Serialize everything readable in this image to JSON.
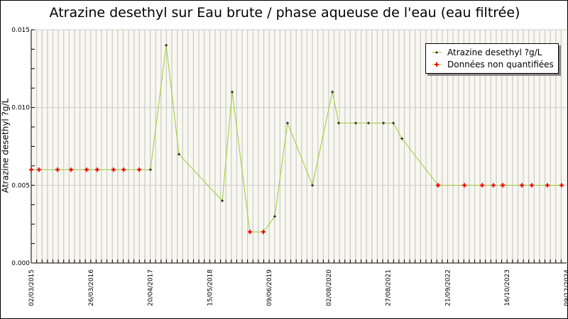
{
  "chart_data": {
    "type": "line",
    "title": "Atrazine desethyl sur Eau brute / phase aqueuse de l'eau (eau filtrée)",
    "xlabel": "",
    "ylabel": "Atrazine desethyl ?g/L",
    "xlim": [
      "2015-03-02",
      "2024-12-09"
    ],
    "ylim": [
      0,
      0.015
    ],
    "x_tick_labels": [
      "02/03/2015",
      "26/03/2016",
      "20/04/2017",
      "15/05/2018",
      "09/06/2019",
      "02/08/2020",
      "27/08/2021",
      "21/09/2022",
      "16/10/2023",
      "09/12/2024"
    ],
    "y_tick_labels": [
      "0.000",
      "0.005",
      "0.010",
      "0.015"
    ],
    "grid": true,
    "legend_position": "top-right",
    "colors": {
      "line": "#9acd32",
      "quantified": "#000000",
      "non_quantified": "#ff0000",
      "plot_bg": "#f8f8f0",
      "grid": "#cccccc"
    },
    "series": [
      {
        "name": "Atrazine desethyl ?g/L",
        "points": [
          [
            "2015-03-02",
            0.006,
            "nq"
          ],
          [
            "2015-04-23",
            0.006,
            "nq"
          ],
          [
            "2015-08-24",
            0.006,
            "nq"
          ],
          [
            "2015-11-22",
            0.006,
            "nq"
          ],
          [
            "2016-03-05",
            0.006,
            "nq"
          ],
          [
            "2016-05-15",
            0.006,
            "nq"
          ],
          [
            "2016-09-01",
            0.006,
            "nq"
          ],
          [
            "2016-11-07",
            0.006,
            "nq"
          ],
          [
            "2017-02-19",
            0.006,
            "nq"
          ],
          [
            "2017-05-05",
            0.006,
            "q"
          ],
          [
            "2017-08-18",
            0.014,
            "q"
          ],
          [
            "2017-11-11",
            0.007,
            "q"
          ],
          [
            "2018-08-27",
            0.004,
            "q"
          ],
          [
            "2018-11-01",
            0.011,
            "q"
          ],
          [
            "2019-02-27",
            0.002,
            "nq"
          ],
          [
            "2019-05-28",
            0.002,
            "nq"
          ],
          [
            "2019-08-12",
            0.003,
            "q"
          ],
          [
            "2019-11-05",
            0.009,
            "q"
          ],
          [
            "2020-04-19",
            0.005,
            "q"
          ],
          [
            "2020-08-30",
            0.011,
            "q"
          ],
          [
            "2020-10-11",
            0.009,
            "q"
          ],
          [
            "2021-02-02",
            0.009,
            "q"
          ],
          [
            "2021-04-28",
            0.009,
            "q"
          ],
          [
            "2021-08-06",
            0.009,
            "q"
          ],
          [
            "2021-10-11",
            0.009,
            "q"
          ],
          [
            "2021-12-07",
            0.008,
            "q"
          ],
          [
            "2022-08-05",
            0.005,
            "nq"
          ],
          [
            "2023-01-27",
            0.005,
            "nq"
          ],
          [
            "2023-05-26",
            0.005,
            "nq"
          ],
          [
            "2023-08-09",
            0.005,
            "nq"
          ],
          [
            "2023-10-10",
            0.005,
            "nq"
          ],
          [
            "2024-02-15",
            0.005,
            "nq"
          ],
          [
            "2024-04-21",
            0.005,
            "nq"
          ],
          [
            "2024-08-03",
            0.005,
            "nq"
          ],
          [
            "2024-11-06",
            0.005,
            "nq"
          ]
        ]
      }
    ],
    "legend": [
      "Atrazine desethyl ?g/L",
      "Données non quantifiées"
    ]
  }
}
